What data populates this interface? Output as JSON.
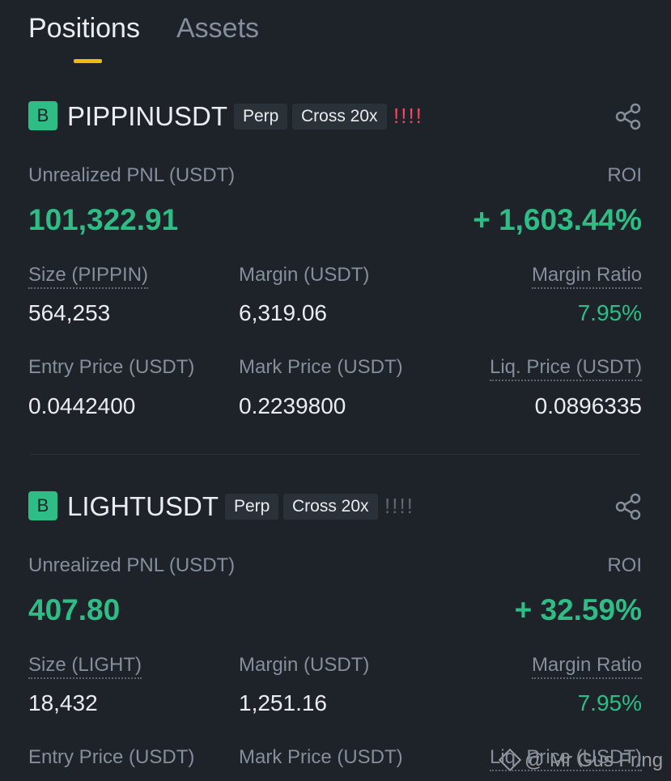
{
  "tabs": [
    "Positions",
    "Assets"
  ],
  "positions": [
    {
      "side": "B",
      "symbol": "PIPPINUSDT",
      "tags": [
        "Perp",
        "Cross 20x"
      ],
      "risk": "!!!!",
      "pnl_label": "Unrealized PNL (USDT)",
      "pnl": "101,322.91",
      "roi_label": "ROI",
      "roi": "+ 1,603.44%",
      "rows": [
        [
          {
            "label": "Size (PIPPIN)",
            "value": "564,253"
          },
          {
            "label": "Margin (USDT)",
            "value": "6,319.06"
          },
          {
            "label": "Margin Ratio",
            "value": "7.95%"
          }
        ],
        [
          {
            "label": "Entry Price (USDT)",
            "value": "0.0442400"
          },
          {
            "label": "Mark Price (USDT)",
            "value": "0.2239800"
          },
          {
            "label": "Liq. Price (USDT)",
            "value": "0.0896335"
          }
        ]
      ]
    },
    {
      "side": "B",
      "symbol": "LIGHTUSDT",
      "tags": [
        "Perp",
        "Cross 20x"
      ],
      "risk": "!!!!",
      "pnl_label": "Unrealized PNL (USDT)",
      "pnl": "407.80",
      "roi_label": "ROI",
      "roi": "+ 32.59%",
      "rows": [
        [
          {
            "label": "Size (LIGHT)",
            "value": "18,432"
          },
          {
            "label": "Margin (USDT)",
            "value": "1,251.16"
          },
          {
            "label": "Margin Ratio",
            "value": "7.95%"
          }
        ],
        [
          {
            "label": "Entry Price (USDT)"
          },
          {
            "label": "Mark Price (USDT)"
          },
          {
            "label": "Liq. Price (USDT)"
          }
        ]
      ]
    }
  ],
  "watermark": "@ Mr Gus Fring"
}
